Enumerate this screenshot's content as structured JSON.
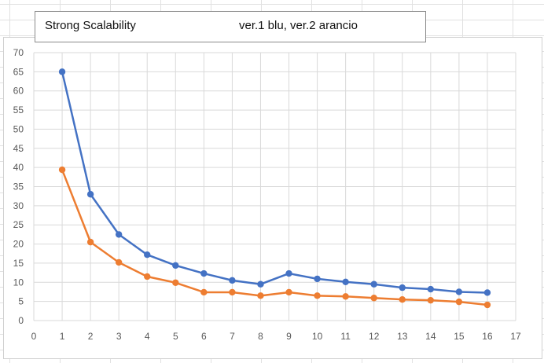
{
  "title_box": {
    "title": "Strong Scalability",
    "note": "ver.1 blu, ver.2 arancio"
  },
  "chart_data": {
    "type": "line",
    "title": "Strong Scalability",
    "subtitle": "ver.1 blu, ver.2 arancio",
    "xlabel": "",
    "ylabel": "",
    "x": [
      1,
      2,
      3,
      4,
      5,
      6,
      7,
      8,
      9,
      10,
      11,
      12,
      13,
      14,
      15,
      16
    ],
    "series": [
      {
        "name": "ver.1",
        "color": "#4472C4",
        "values": [
          65,
          33,
          22.5,
          17.2,
          14.4,
          12.3,
          10.5,
          9.5,
          12.3,
          10.9,
          10.1,
          9.5,
          8.6,
          8.2,
          7.5,
          7.3
        ]
      },
      {
        "name": "ver.2",
        "color": "#ED7D31",
        "values": [
          39.4,
          20.5,
          15.2,
          11.5,
          9.9,
          7.4,
          7.4,
          6.5,
          7.4,
          6.5,
          6.3,
          5.9,
          5.5,
          5.3,
          4.9,
          4.1
        ]
      }
    ],
    "xlim": [
      0,
      17
    ],
    "ylim": [
      0,
      70
    ],
    "x_ticks": [
      "0",
      "1",
      "2",
      "3",
      "4",
      "5",
      "6",
      "7",
      "8",
      "9",
      "10",
      "11",
      "12",
      "13",
      "14",
      "15",
      "16",
      "17"
    ],
    "y_ticks": [
      "0",
      "5",
      "10",
      "15",
      "20",
      "25",
      "30",
      "35",
      "40",
      "45",
      "50",
      "55",
      "60",
      "65",
      "70"
    ],
    "grid": true,
    "gridline_color": "#d9d9d9"
  }
}
